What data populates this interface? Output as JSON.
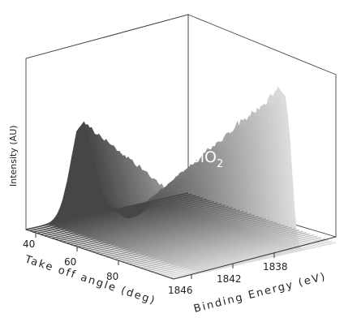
{
  "chart_data": {
    "type": "area",
    "surface": "3d",
    "ylabel": "Intensity (AU)",
    "xlabel": "Take off angle (deg)",
    "zlabel": "Binding Energy (eV)",
    "x_ticks": [
      "40",
      "60",
      "80"
    ],
    "z_ticks": [
      "1846",
      "1842",
      "1838"
    ],
    "x_range": [
      35,
      95
    ],
    "z_range": [
      1848,
      1835
    ],
    "annotation": {
      "text": "4 nm SiO",
      "subscript": "2"
    },
    "peaks": [
      {
        "binding_energy": 1843.5,
        "intensity_at_40deg": 0.52,
        "intensity_at_90deg": 0.18
      },
      {
        "binding_energy": 1839.5,
        "intensity_at_40deg": 0.02,
        "intensity_at_90deg": 0.88
      }
    ],
    "colormap": "grayscale",
    "grid": false
  }
}
